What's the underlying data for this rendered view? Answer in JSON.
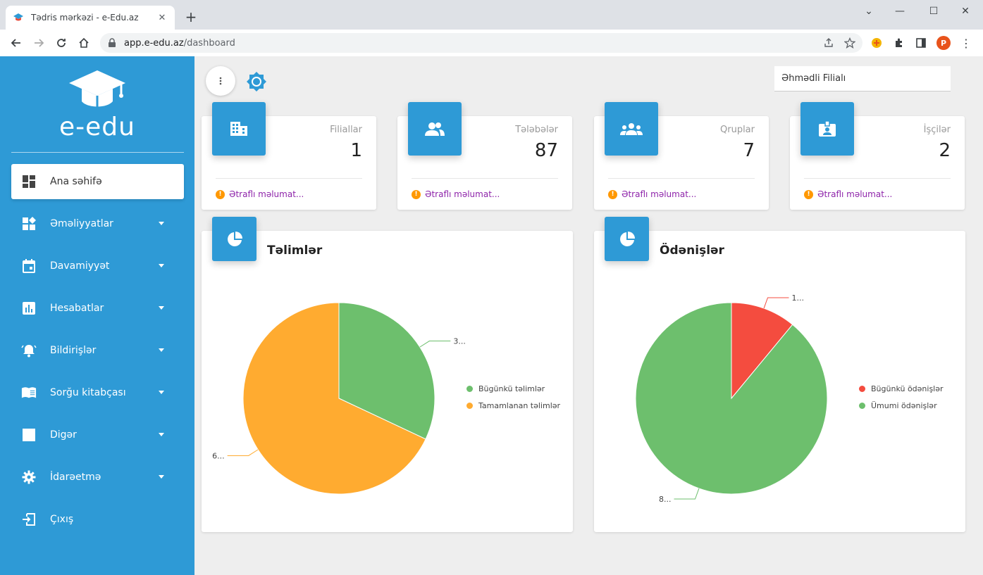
{
  "browser": {
    "tab_title": "Tədris mərkəzi - e-Edu.az",
    "url_host": "app.e-edu.az",
    "url_path": "/dashboard",
    "profile_initial": "P"
  },
  "sidebar": {
    "brand": "e-edu",
    "items": [
      {
        "label": "Ana səhifə",
        "icon": "dashboard-icon",
        "active": true,
        "has_caret": false
      },
      {
        "label": "Əməliyyatlar",
        "icon": "widgets-icon",
        "active": false,
        "has_caret": true
      },
      {
        "label": "Davamiyyət",
        "icon": "calendar-icon",
        "active": false,
        "has_caret": true
      },
      {
        "label": "Hesabatlar",
        "icon": "bar-chart-icon",
        "active": false,
        "has_caret": true
      },
      {
        "label": "Bildirişlər",
        "icon": "bell-icon",
        "active": false,
        "has_caret": true
      },
      {
        "label": "Sorğu kitabçası",
        "icon": "book-icon",
        "active": false,
        "has_caret": true
      },
      {
        "label": "Digər",
        "icon": "square-icon",
        "active": false,
        "has_caret": true
      },
      {
        "label": "İdarəetmə",
        "icon": "gear-icon",
        "active": false,
        "has_caret": true
      },
      {
        "label": "Çıxış",
        "icon": "logout-icon",
        "active": false,
        "has_caret": false
      }
    ]
  },
  "topbar": {
    "branch": "Əhmədli Filialı"
  },
  "stats": [
    {
      "label": "Filiallar",
      "value": "1",
      "icon": "building-icon",
      "more": "Ətraflı məlumat..."
    },
    {
      "label": "Tələbələr",
      "value": "87",
      "icon": "people-icon",
      "more": "Ətraflı məlumat..."
    },
    {
      "label": "Qruplar",
      "value": "7",
      "icon": "groups-icon",
      "more": "Ətraflı məlumat..."
    },
    {
      "label": "İşçilər",
      "value": "2",
      "icon": "badge-icon",
      "more": "Ətraflı məlumat..."
    }
  ],
  "chart_data": [
    {
      "type": "pie",
      "title": "Təlimlər",
      "series": [
        {
          "name": "Bügünkü təlimlər",
          "value": 32,
          "label": "3...",
          "color": "#6dbf6d"
        },
        {
          "name": "Tamamlanan təlimlər",
          "value": 68,
          "label": "6...",
          "color": "#ffab30"
        }
      ],
      "legend": "right"
    },
    {
      "type": "pie",
      "title": "Ödənişlər",
      "series": [
        {
          "name": "Bügünkü ödənişlər",
          "value": 11,
          "label": "1...",
          "color": "#f44c3f"
        },
        {
          "name": "Ümumi ödənişlər",
          "value": 89,
          "label": "8...",
          "color": "#6dbf6d"
        }
      ],
      "legend": "right"
    }
  ],
  "colors": {
    "primary": "#2e9ad6",
    "link": "#8e24aa",
    "info": "#ff9800"
  }
}
